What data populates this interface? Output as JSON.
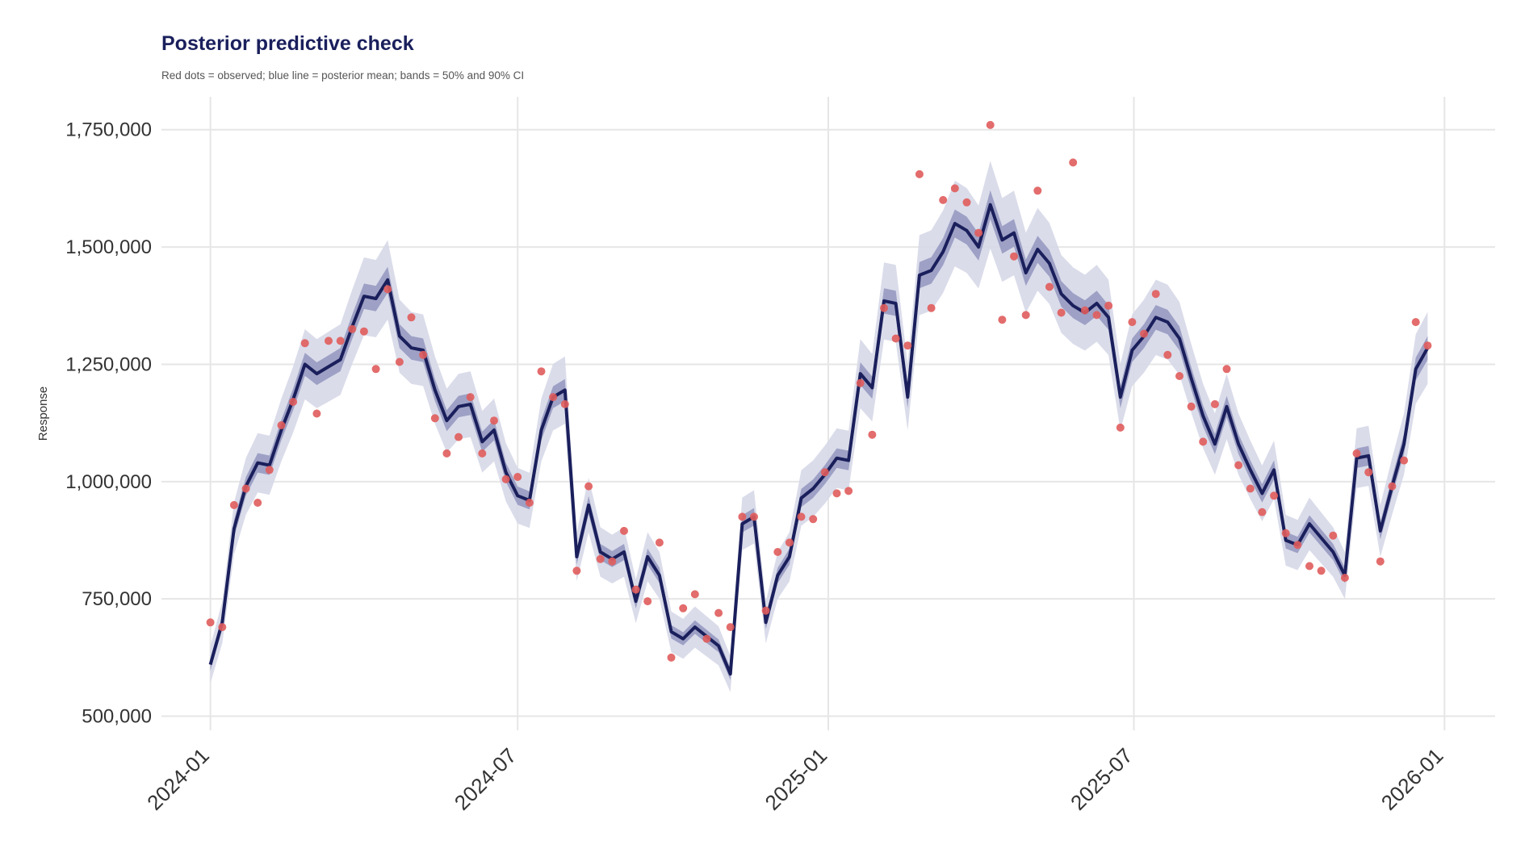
{
  "chart_data": {
    "type": "line",
    "title": "Posterior predictive check",
    "subtitle": "Red dots = observed; blue line = posterior mean; bands = 50% and 90% CI",
    "xlabel": "",
    "ylabel": "Response",
    "x_ticks": [
      "2024-01-01",
      "2024-07-01",
      "2025-01-01",
      "2025-07-01",
      "2026-01-01"
    ],
    "x_tick_labels": [
      "2024-01",
      "2024-07",
      "2025-01",
      "2025-07",
      "2026-01"
    ],
    "y_ticks": [
      500000,
      750000,
      1000000,
      1250000,
      1500000,
      1750000
    ],
    "y_tick_labels": [
      "500,000",
      "750,000",
      "1,000,000",
      "1,250,000",
      "1,500,000",
      "1,750,000"
    ],
    "xlim": [
      "2023-12-03",
      "2026-01-31"
    ],
    "ylim": [
      470000,
      1820000
    ],
    "grid": true,
    "x": [
      "2024-01-01",
      "2024-01-08",
      "2024-01-15",
      "2024-01-22",
      "2024-01-29",
      "2024-02-05",
      "2024-02-12",
      "2024-02-19",
      "2024-02-26",
      "2024-03-04",
      "2024-03-11",
      "2024-03-18",
      "2024-03-25",
      "2024-04-01",
      "2024-04-08",
      "2024-04-15",
      "2024-04-22",
      "2024-04-29",
      "2024-05-06",
      "2024-05-13",
      "2024-05-20",
      "2024-05-27",
      "2024-06-03",
      "2024-06-10",
      "2024-06-17",
      "2024-06-24",
      "2024-07-01",
      "2024-07-08",
      "2024-07-15",
      "2024-07-22",
      "2024-07-29",
      "2024-08-05",
      "2024-08-12",
      "2024-08-19",
      "2024-08-26",
      "2024-09-02",
      "2024-09-09",
      "2024-09-16",
      "2024-09-23",
      "2024-09-30",
      "2024-10-07",
      "2024-10-14",
      "2024-10-21",
      "2024-10-28",
      "2024-11-04",
      "2024-11-11",
      "2024-11-18",
      "2024-11-25",
      "2024-12-02",
      "2024-12-09",
      "2024-12-16",
      "2024-12-23",
      "2024-12-30",
      "2025-01-06",
      "2025-01-13",
      "2025-01-20",
      "2025-01-27",
      "2025-02-03",
      "2025-02-10",
      "2025-02-17",
      "2025-02-24",
      "2025-03-03",
      "2025-03-10",
      "2025-03-17",
      "2025-03-24",
      "2025-03-31",
      "2025-04-07",
      "2025-04-14",
      "2025-04-21",
      "2025-04-28",
      "2025-05-05",
      "2025-05-12",
      "2025-05-19",
      "2025-05-26",
      "2025-06-02",
      "2025-06-09",
      "2025-06-16",
      "2025-06-23",
      "2025-06-30",
      "2025-07-07",
      "2025-07-14",
      "2025-07-21",
      "2025-07-28",
      "2025-08-04",
      "2025-08-11",
      "2025-08-18",
      "2025-08-25",
      "2025-09-01",
      "2025-09-08",
      "2025-09-15",
      "2025-09-22",
      "2025-09-29",
      "2025-10-06",
      "2025-10-13",
      "2025-10-20",
      "2025-10-27",
      "2025-11-03",
      "2025-11-10",
      "2025-11-17",
      "2025-11-24",
      "2025-12-01",
      "2025-12-08",
      "2025-12-15",
      "2025-12-22"
    ],
    "series": [
      {
        "name": "observed",
        "type": "scatter",
        "color": "#e05c5c",
        "values": [
          700000,
          690000,
          950000,
          985000,
          955000,
          1025000,
          1120000,
          1170000,
          1295000,
          1145000,
          1300000,
          1300000,
          1325000,
          1320000,
          1240000,
          1410000,
          1255000,
          1350000,
          1270000,
          1135000,
          1060000,
          1095000,
          1180000,
          1060000,
          1130000,
          1005000,
          1010000,
          955000,
          1235000,
          1180000,
          1165000,
          810000,
          990000,
          835000,
          830000,
          895000,
          770000,
          745000,
          870000,
          625000,
          730000,
          760000,
          665000,
          720000,
          690000,
          925000,
          925000,
          725000,
          850000,
          870000,
          925000,
          920000,
          1020000,
          975000,
          980000,
          1210000,
          1100000,
          1370000,
          1305000,
          1290000,
          1655000,
          1370000,
          1600000,
          1625000,
          1595000,
          1530000,
          1760000,
          1345000,
          1480000,
          1355000,
          1620000,
          1415000,
          1360000,
          1680000,
          1365000,
          1355000,
          1375000,
          1115000,
          1340000,
          1315000,
          1400000,
          1270000,
          1225000,
          1160000,
          1085000,
          1165000,
          1240000,
          1035000,
          985000,
          935000,
          970000,
          890000,
          865000,
          820000,
          810000,
          885000,
          795000,
          1060000,
          1020000,
          830000,
          990000,
          1045000,
          1340000,
          1290000
        ]
      },
      {
        "name": "posterior mean",
        "type": "line",
        "color": "#1a1f5c",
        "values": [
          610000,
          700000,
          900000,
          990000,
          1040000,
          1035000,
          1110000,
          1175000,
          1250000,
          1230000,
          1245000,
          1260000,
          1330000,
          1395000,
          1390000,
          1430000,
          1310000,
          1285000,
          1280000,
          1195000,
          1130000,
          1160000,
          1165000,
          1085000,
          1110000,
          1020000,
          970000,
          960000,
          1110000,
          1180000,
          1195000,
          840000,
          950000,
          850000,
          835000,
          850000,
          745000,
          840000,
          800000,
          680000,
          665000,
          690000,
          670000,
          650000,
          590000,
          910000,
          925000,
          700000,
          800000,
          840000,
          965000,
          985000,
          1015000,
          1050000,
          1045000,
          1230000,
          1200000,
          1385000,
          1380000,
          1180000,
          1440000,
          1450000,
          1490000,
          1550000,
          1535000,
          1500000,
          1590000,
          1515000,
          1530000,
          1445000,
          1495000,
          1465000,
          1400000,
          1375000,
          1360000,
          1380000,
          1350000,
          1180000,
          1280000,
          1310000,
          1350000,
          1340000,
          1305000,
          1220000,
          1140000,
          1080000,
          1160000,
          1080000,
          1025000,
          975000,
          1025000,
          875000,
          865000,
          910000,
          880000,
          850000,
          800000,
          1050000,
          1055000,
          895000,
          990000,
          1080000,
          1240000,
          1285000
        ]
      }
    ],
    "bands": [
      {
        "name": "90% CI",
        "color": "#d6d8e8"
      },
      {
        "name": "50% CI",
        "color": "#8e92bc"
      }
    ]
  }
}
